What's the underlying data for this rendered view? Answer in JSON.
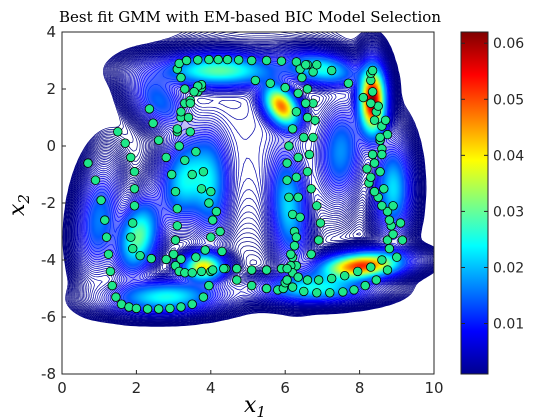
{
  "chart_data": {
    "type": "scatter",
    "title": "Best fit GMM with EM-based BIC Model Selection",
    "xlabel": "x",
    "xlabel_sub": "1",
    "ylabel": "x",
    "ylabel_sub": "2",
    "xlim": [
      0,
      10
    ],
    "ylim": [
      -8,
      4
    ],
    "xticks": [
      0,
      2,
      4,
      6,
      8,
      10
    ],
    "yticks": [
      -8,
      -6,
      -4,
      -2,
      0,
      2,
      4
    ],
    "grid": true,
    "colormap": "jet",
    "colorbar": {
      "ticks": [
        "0.01",
        "0.02",
        "0.03",
        "0.04",
        "0.05",
        "0.06"
      ],
      "range": [
        0.001,
        0.062
      ]
    },
    "components": [
      {
        "mean": [
          8.35,
          1.6
        ],
        "sigma": [
          0.22,
          0.75
        ],
        "rho": 0.0,
        "peak": 0.062
      },
      {
        "mean": [
          8.05,
          -4.2
        ],
        "sigma": [
          0.7,
          0.3
        ],
        "rho": 0.25,
        "peak": 0.052
      },
      {
        "mean": [
          5.9,
          1.4
        ],
        "sigma": [
          0.3,
          0.45
        ],
        "rho": -0.4,
        "peak": 0.045
      },
      {
        "mean": [
          3.8,
          -4.25
        ],
        "sigma": [
          0.35,
          0.3
        ],
        "rho": 0.0,
        "peak": 0.04
      },
      {
        "mean": [
          2.05,
          -3.2
        ],
        "sigma": [
          0.35,
          0.8
        ],
        "rho": 0.3,
        "peak": 0.03
      },
      {
        "mean": [
          4.2,
          2.65
        ],
        "sigma": [
          1.0,
          0.35
        ],
        "rho": 0.0,
        "peak": 0.028
      },
      {
        "mean": [
          7.0,
          2.7
        ],
        "sigma": [
          0.6,
          0.35
        ],
        "rho": -0.3,
        "peak": 0.024
      },
      {
        "mean": [
          2.8,
          -5.3
        ],
        "sigma": [
          0.9,
          0.35
        ],
        "rho": 0.1,
        "peak": 0.025
      },
      {
        "mean": [
          6.8,
          -5.0
        ],
        "sigma": [
          0.9,
          0.3
        ],
        "rho": 0.0,
        "peak": 0.024
      },
      {
        "mean": [
          3.3,
          -1.2
        ],
        "sigma": [
          0.4,
          0.9
        ],
        "rho": 0.2,
        "peak": 0.022
      },
      {
        "mean": [
          6.1,
          -2.2
        ],
        "sigma": [
          0.3,
          1.2
        ],
        "rho": -0.2,
        "peak": 0.02
      },
      {
        "mean": [
          8.9,
          -1.5
        ],
        "sigma": [
          0.3,
          1.0
        ],
        "rho": 0.0,
        "peak": 0.022
      },
      {
        "mean": [
          1.0,
          -2.6
        ],
        "sigma": [
          0.35,
          1.1
        ],
        "rho": 0.2,
        "peak": 0.016
      },
      {
        "mean": [
          4.0,
          -1.4
        ],
        "sigma": [
          0.3,
          1.1
        ],
        "rho": 0.0,
        "peak": 0.017
      },
      {
        "mean": [
          7.5,
          -0.2
        ],
        "sigma": [
          0.35,
          1.0
        ],
        "rho": 0.1,
        "peak": 0.016
      },
      {
        "mean": [
          2.6,
          1.6
        ],
        "sigma": [
          0.45,
          0.6
        ],
        "rho": -0.4,
        "peak": 0.014
      },
      {
        "mean": [
          5.3,
          0.0
        ],
        "sigma": [
          1.6,
          2.3
        ],
        "rho": 0.0,
        "peak": 0.0035
      }
    ],
    "series": [
      {
        "marker": "circle",
        "marker_color": "#1ee88a",
        "x": [
          0.7,
          0.9,
          1.05,
          1.15,
          1.2,
          1.25,
          1.3,
          1.35,
          1.45,
          1.6,
          1.8,
          2.0,
          2.3,
          2.6,
          2.9,
          3.2,
          3.5,
          3.8,
          3.95,
          4.0,
          1.5,
          1.7,
          1.85,
          1.95,
          1.95,
          1.95,
          1.9,
          1.85,
          1.9,
          2.1,
          2.4,
          2.8,
          3.2,
          3.6,
          3.85,
          4.0,
          4.05,
          3.95,
          3.75,
          3.5,
          3.3,
          3.15,
          3.1,
          3.2,
          3.3,
          3.3,
          3.2,
          3.1,
          3.15,
          3.35,
          3.65,
          3.95,
          4.2,
          4.45,
          4.75,
          5.1,
          5.5,
          5.9,
          6.3,
          6.6,
          6.75,
          3.1,
          3.2,
          3.45,
          3.65,
          3.75,
          3.75,
          3.65,
          3.55,
          3.45,
          3.4,
          3.45,
          3.6,
          3.8,
          4.0,
          4.15,
          4.25,
          4.3,
          4.4,
          4.7,
          5.1,
          5.5,
          5.8,
          5.95,
          6.0,
          2.35,
          2.45,
          2.6,
          2.8,
          2.95,
          3.05,
          3.1,
          3.1,
          3.05,
          3.0,
          3.05,
          3.15,
          3.3,
          3.5,
          3.75,
          4.05,
          4.35,
          4.7,
          5.1,
          5.5,
          5.9,
          6.3,
          6.7,
          6.9,
          6.95,
          6.85,
          6.7,
          6.6,
          6.65,
          6.75,
          6.8,
          6.75,
          6.6,
          6.45,
          6.4,
          6.55,
          6.85,
          7.25,
          7.7,
          8.1,
          8.45,
          8.6,
          8.55,
          8.35,
          8.2,
          8.25,
          8.5,
          8.75,
          8.85,
          8.75,
          6.3,
          6.2,
          6.1,
          6.05,
          6.05,
          6.1,
          6.2,
          6.25,
          6.25,
          6.2,
          6.15,
          6.2,
          6.35,
          6.6,
          6.9,
          7.25,
          7.6,
          7.95,
          8.3,
          8.6,
          8.8,
          8.9,
          8.8,
          8.6,
          8.4,
          8.3,
          8.4,
          8.6,
          8.75,
          8.7,
          8.5,
          8.35,
          8.3,
          8.3,
          8.35,
          5.2,
          5.6,
          6.0,
          6.35,
          6.55,
          6.6,
          6.5,
          6.35,
          6.3,
          6.35,
          6.4,
          6.3,
          6.15,
          6.05,
          6.05,
          6.2,
          6.5,
          6.85,
          7.2,
          7.55,
          7.85,
          8.15,
          8.45,
          8.75,
          9.0,
          9.15,
          9.1,
          8.9,
          8.65,
          8.55,
          8.6,
          8.55,
          8.4,
          8.3
        ],
        "y": [
          -0.6,
          -1.2,
          -1.9,
          -2.6,
          -3.2,
          -3.8,
          -4.4,
          -4.9,
          -5.3,
          -5.55,
          -5.65,
          -5.7,
          -5.72,
          -5.72,
          -5.7,
          -5.65,
          -5.55,
          -5.3,
          -4.9,
          -4.4,
          0.5,
          0.1,
          -0.4,
          -0.9,
          -1.5,
          -2.1,
          -2.7,
          -3.2,
          -3.6,
          -3.85,
          -3.95,
          -3.98,
          -3.97,
          -3.9,
          -3.65,
          -3.2,
          -2.6,
          -2.0,
          -1.5,
          -1.0,
          -0.5,
          0.0,
          0.5,
          1.0,
          1.5,
          2.0,
          2.4,
          2.7,
          2.9,
          3.0,
          3.02,
          3.03,
          3.03,
          3.03,
          3.02,
          3.0,
          3.0,
          2.98,
          2.95,
          2.85,
          2.6,
          0.6,
          1.2,
          1.6,
          1.9,
          2.05,
          2.15,
          2.1,
          1.9,
          1.5,
          1.0,
          0.5,
          -0.2,
          -0.9,
          -1.6,
          -2.3,
          -3.0,
          -3.7,
          -4.3,
          -4.7,
          -4.9,
          -5.0,
          -5.05,
          -5.0,
          -4.8,
          1.3,
          0.8,
          0.2,
          -0.4,
          -1.0,
          -1.6,
          -2.2,
          -2.8,
          -3.3,
          -3.8,
          -4.2,
          -4.4,
          -4.45,
          -4.45,
          -4.4,
          -4.35,
          -4.3,
          -4.3,
          -4.35,
          -4.35,
          -4.3,
          -4.2,
          -3.8,
          -3.3,
          -2.7,
          -2.1,
          -1.5,
          -0.9,
          -0.3,
          0.3,
          0.9,
          1.5,
          2.0,
          2.4,
          2.7,
          2.85,
          2.85,
          2.65,
          2.2,
          1.7,
          1.2,
          0.7,
          0.2,
          -0.3,
          -0.8,
          -1.3,
          -1.8,
          -2.3,
          -2.8,
          -3.3,
          1.2,
          0.6,
          0.0,
          -0.6,
          -1.2,
          -1.8,
          -2.4,
          -3.0,
          -3.5,
          -3.9,
          -4.2,
          -4.45,
          -4.6,
          -4.7,
          -4.7,
          -4.65,
          -4.55,
          -4.4,
          -4.25,
          -4.0,
          -3.6,
          -3.1,
          -2.6,
          -2.1,
          -1.6,
          -1.1,
          -0.6,
          -0.1,
          0.4,
          0.9,
          1.4,
          1.9,
          2.3,
          2.55,
          2.65,
          2.3,
          2.2,
          2.05,
          1.85,
          1.5,
          1.0,
          0.3,
          -0.4,
          -1.1,
          -1.8,
          -2.5,
          -3.2,
          -3.8,
          -4.3,
          -4.7,
          -4.95,
          -5.1,
          -5.15,
          -5.15,
          -5.12,
          -5.05,
          -4.9,
          -4.7,
          -4.35,
          -3.9,
          -3.3,
          -2.7,
          -2.1,
          -1.5,
          -0.9,
          -0.3,
          0.3,
          0.9,
          1.5
        ]
      }
    ]
  }
}
